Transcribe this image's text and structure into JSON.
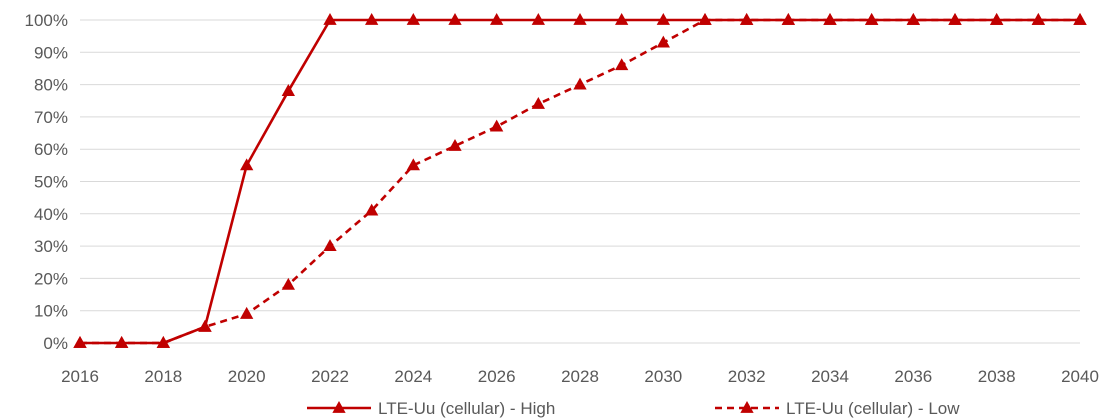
{
  "chart_data": {
    "type": "line",
    "x": [
      2016,
      2017,
      2018,
      2019,
      2020,
      2021,
      2022,
      2023,
      2024,
      2025,
      2026,
      2027,
      2028,
      2029,
      2030,
      2031,
      2032,
      2033,
      2034,
      2035,
      2036,
      2037,
      2038,
      2039,
      2040
    ],
    "x_ticks": [
      2016,
      2018,
      2020,
      2022,
      2024,
      2026,
      2028,
      2030,
      2032,
      2034,
      2036,
      2038,
      2040
    ],
    "y_ticks": [
      "0%",
      "10%",
      "20%",
      "30%",
      "40%",
      "50%",
      "60%",
      "70%",
      "80%",
      "90%",
      "100%"
    ],
    "ylim": [
      0,
      100
    ],
    "xlim": [
      2016,
      2040
    ],
    "grid": "horizontal",
    "legend_position": "bottom",
    "series": [
      {
        "name": "LTE-Uu (cellular) - High",
        "style": "solid",
        "color": "#c00000",
        "values": [
          0,
          0,
          0,
          5,
          55,
          78,
          100,
          100,
          100,
          100,
          100,
          100,
          100,
          100,
          100,
          100,
          100,
          100,
          100,
          100,
          100,
          100,
          100,
          100,
          100
        ]
      },
      {
        "name": "LTE-Uu (cellular) - Low",
        "style": "dashed",
        "color": "#c00000",
        "values": [
          0,
          0,
          0,
          5,
          9,
          18,
          30,
          41,
          55,
          61,
          67,
          74,
          80,
          86,
          93,
          100,
          100,
          100,
          100,
          100,
          100,
          100,
          100,
          100,
          100
        ]
      }
    ]
  }
}
